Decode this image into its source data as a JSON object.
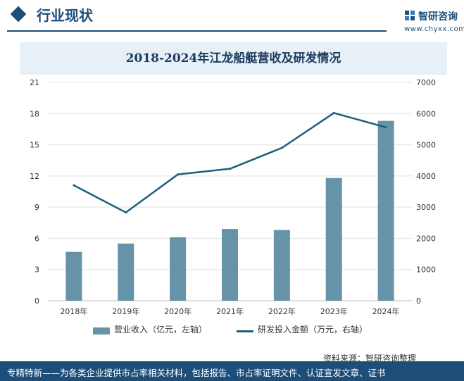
{
  "header": {
    "section_title": "行业现状",
    "brand_name": "智研咨询",
    "brand_url": "www.chyxx.com"
  },
  "chart_data": {
    "type": "bar",
    "title": "2018-2024年江龙船艇营收及研发情况",
    "categories": [
      "2018年",
      "2019年",
      "2020年",
      "2021年",
      "2022年",
      "2023年",
      "2024年"
    ],
    "series": [
      {
        "name": "营业收入（亿元，左轴）",
        "kind": "bar",
        "axis": "left",
        "color": "#6693a8",
        "values": [
          4.7,
          5.5,
          6.1,
          6.9,
          6.8,
          11.8,
          17.3
        ]
      },
      {
        "name": "研发投入金额（万元，右轴）",
        "kind": "line",
        "axis": "right",
        "color": "#1c5f7c",
        "values": [
          3700,
          2830,
          4050,
          4230,
          4900,
          6020,
          5560
        ]
      }
    ],
    "y_left": {
      "min": 0,
      "max": 21,
      "ticks": [
        0,
        3,
        6,
        9,
        12,
        15,
        18,
        21
      ]
    },
    "y_right": {
      "min": 0,
      "max": 7000,
      "ticks": [
        0,
        1000,
        2000,
        3000,
        4000,
        5000,
        6000,
        7000
      ]
    },
    "grid": true,
    "legend": "bottom"
  },
  "source": "资料来源：智研咨询整理",
  "footer": "专精特新——为各类企业提供市占率相关材料，包括报告、市占率证明文件、认证宣发文章、证书"
}
